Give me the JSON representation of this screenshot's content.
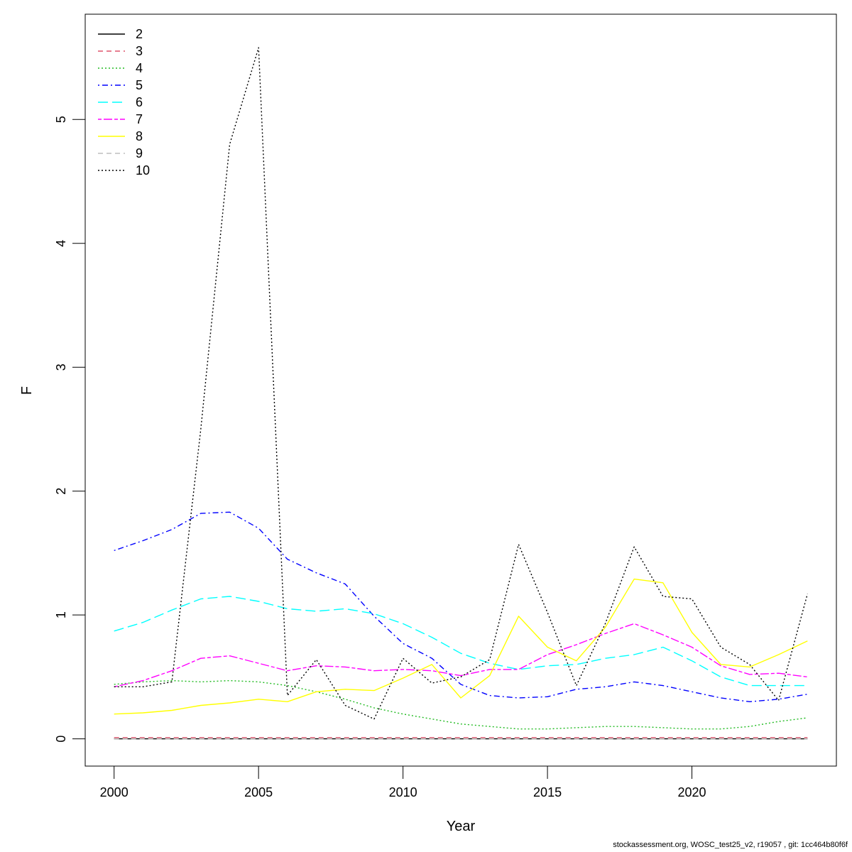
{
  "chart_data": {
    "type": "line",
    "xlabel": "Year",
    "ylabel": "F",
    "xlim": [
      1999,
      2025
    ],
    "ylim": [
      -0.22,
      5.85
    ],
    "xticks": [
      2000,
      2005,
      2010,
      2015,
      2020
    ],
    "yticks": [
      0,
      1,
      2,
      3,
      4,
      5
    ],
    "grid": false,
    "legend_position": "top-left",
    "x": [
      2000,
      2001,
      2002,
      2003,
      2004,
      2005,
      2006,
      2007,
      2008,
      2009,
      2010,
      2011,
      2012,
      2013,
      2014,
      2015,
      2016,
      2017,
      2018,
      2019,
      2020,
      2021,
      2022,
      2023,
      2024
    ],
    "series": [
      {
        "name": "2",
        "color": "#000000",
        "dash": "solid",
        "values": [
          0.0,
          0.0,
          0.0,
          0.0,
          0.0,
          0.0,
          0.0,
          0.0,
          0.0,
          0.0,
          0.0,
          0.0,
          0.0,
          0.0,
          0.0,
          0.0,
          0.0,
          0.0,
          0.0,
          0.0,
          0.0,
          0.0,
          0.0,
          0.0,
          0.0
        ]
      },
      {
        "name": "3",
        "color": "#DF536B",
        "dash": "dashed",
        "values": [
          0.01,
          0.01,
          0.01,
          0.01,
          0.01,
          0.01,
          0.01,
          0.01,
          0.01,
          0.01,
          0.01,
          0.01,
          0.01,
          0.01,
          0.01,
          0.01,
          0.01,
          0.01,
          0.01,
          0.01,
          0.01,
          0.01,
          0.01,
          0.01,
          0.01
        ]
      },
      {
        "name": "4",
        "color": "#22bb22",
        "dash": "dotted",
        "values": [
          0.44,
          0.46,
          0.47,
          0.46,
          0.47,
          0.46,
          0.43,
          0.38,
          0.32,
          0.25,
          0.2,
          0.16,
          0.12,
          0.1,
          0.08,
          0.08,
          0.09,
          0.1,
          0.1,
          0.09,
          0.08,
          0.08,
          0.1,
          0.14,
          0.17
        ]
      },
      {
        "name": "5",
        "color": "#0000ff",
        "dash": "dotdash",
        "values": [
          1.52,
          1.6,
          1.69,
          1.82,
          1.83,
          1.7,
          1.45,
          1.34,
          1.25,
          0.99,
          0.77,
          0.65,
          0.44,
          0.35,
          0.33,
          0.34,
          0.4,
          0.42,
          0.46,
          0.43,
          0.38,
          0.33,
          0.3,
          0.32,
          0.36
        ]
      },
      {
        "name": "6",
        "color": "#00ffff",
        "dash": "longdash",
        "values": [
          0.87,
          0.94,
          1.04,
          1.13,
          1.15,
          1.11,
          1.05,
          1.03,
          1.05,
          1.01,
          0.93,
          0.82,
          0.69,
          0.61,
          0.56,
          0.59,
          0.6,
          0.65,
          0.68,
          0.74,
          0.63,
          0.5,
          0.43,
          0.43,
          0.43
        ]
      },
      {
        "name": "7",
        "color": "#ff00ff",
        "dash": "twodash",
        "values": [
          0.42,
          0.47,
          0.55,
          0.65,
          0.67,
          0.61,
          0.55,
          0.59,
          0.58,
          0.55,
          0.56,
          0.55,
          0.51,
          0.56,
          0.56,
          0.68,
          0.76,
          0.85,
          0.93,
          0.84,
          0.74,
          0.59,
          0.52,
          0.53,
          0.5
        ]
      },
      {
        "name": "8",
        "color": "#ffff00",
        "dash": "solid",
        "values": [
          0.2,
          0.21,
          0.23,
          0.27,
          0.29,
          0.32,
          0.3,
          0.38,
          0.4,
          0.39,
          0.49,
          0.6,
          0.33,
          0.51,
          0.99,
          0.74,
          0.63,
          0.9,
          1.29,
          1.26,
          0.86,
          0.6,
          0.58,
          0.68,
          0.79
        ]
      },
      {
        "name": "9",
        "color": "#bebebe",
        "dash": "dashed",
        "values": [
          0.0,
          0.0,
          0.0,
          0.0,
          0.0,
          0.0,
          0.0,
          0.0,
          0.0,
          0.0,
          0.0,
          0.0,
          0.0,
          0.0,
          0.0,
          0.0,
          0.0,
          0.0,
          0.0,
          0.0,
          0.0,
          0.0,
          0.0,
          0.0,
          0.0
        ]
      },
      {
        "name": "10",
        "color": "#000000",
        "dash": "dotted",
        "values": [
          0.42,
          0.42,
          0.46,
          2.5,
          4.8,
          5.58,
          0.35,
          0.64,
          0.27,
          0.16,
          0.65,
          0.45,
          0.5,
          0.64,
          1.57,
          1.02,
          0.43,
          0.93,
          1.55,
          1.15,
          1.13,
          0.74,
          0.6,
          0.31,
          1.17
        ]
      }
    ]
  },
  "footer": {
    "text": "stockassessment.org, WOSC_test25_v2, r19057 , git: 1cc464b80f6f"
  }
}
